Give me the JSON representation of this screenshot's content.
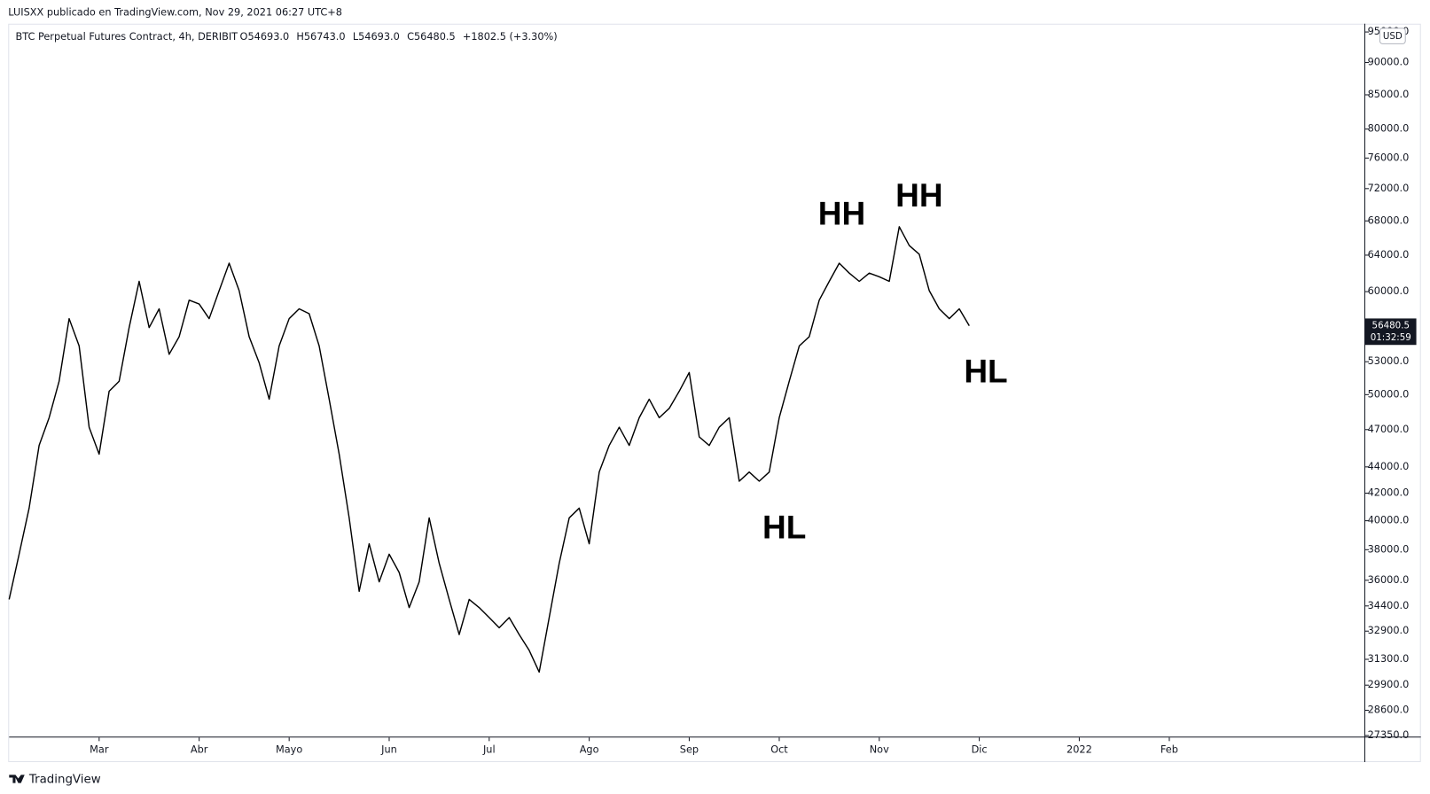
{
  "header": {
    "publisher": "LUISXX publicado en TradingView.com, Nov 29, 2021 06:27 UTC+8",
    "brand": "TradingView"
  },
  "chart_data": {
    "type": "line",
    "title": "BTC Perpetual Futures Contract, 4h, DERIBIT",
    "ohlc": [
      "O54693.0",
      "H56743.0",
      "L54693.0",
      "C56480.5",
      "+1802.5 (+3.30%)"
    ],
    "currency": "USD",
    "log_scale": true,
    "grid": false,
    "categories": [
      null,
      null,
      null,
      null,
      null,
      null,
      null,
      null,
      null,
      "Mar",
      null,
      null,
      null,
      null,
      null,
      null,
      null,
      null,
      null,
      "Abr",
      null,
      null,
      null,
      null,
      null,
      null,
      null,
      null,
      "Mayo",
      null,
      null,
      null,
      null,
      null,
      null,
      null,
      null,
      null,
      "Jun",
      null,
      null,
      null,
      null,
      null,
      null,
      null,
      null,
      null,
      "Jul",
      null,
      null,
      null,
      null,
      null,
      null,
      null,
      null,
      null,
      "Ago",
      null,
      null,
      null,
      null,
      null,
      null,
      null,
      null,
      null,
      "Sep",
      null,
      null,
      null,
      null,
      null,
      null,
      null,
      null,
      "Oct",
      null,
      null,
      null,
      null,
      null,
      null,
      null,
      null,
      null,
      "Nov",
      null,
      null,
      null,
      null,
      null,
      null,
      null,
      null,
      null,
      "Dic",
      null,
      null,
      null,
      null,
      null,
      null,
      null,
      null,
      null,
      "2022",
      null,
      null,
      null,
      null,
      null,
      null,
      null,
      null,
      "Feb",
      null,
      null,
      null,
      null,
      null,
      null,
      null,
      null,
      null,
      null,
      null,
      null,
      null,
      null,
      null,
      null,
      null,
      null,
      null
    ],
    "series": [
      {
        "name": "BTC",
        "color": "#000000",
        "values": [
          34800,
          37700,
          40900,
          45700,
          48000,
          51200,
          57200,
          54500,
          47200,
          45000,
          50300,
          51200,
          56300,
          61100,
          56300,
          58200,
          53700,
          55400,
          59100,
          58700,
          57200,
          60100,
          63100,
          60100,
          55400,
          52900,
          49600,
          54500,
          57200,
          58200,
          57700,
          54500,
          49600,
          45000,
          40200,
          35300,
          38400,
          35900,
          37700,
          36500,
          34300,
          35900,
          40200,
          37100,
          34800,
          32700,
          34800,
          34300,
          33700,
          33100,
          33700,
          32700,
          31800,
          30600,
          33700,
          37100,
          40200,
          40900,
          38400,
          43600,
          45700,
          47200,
          45700,
          48000,
          49600,
          48000,
          48800,
          50300,
          52000,
          46400,
          45700,
          47200,
          48000,
          42900,
          43600,
          42900,
          43600,
          48000,
          51200,
          54500,
          55400,
          59100,
          61100,
          63100,
          62000,
          61100,
          62000,
          61600,
          61100,
          67300,
          65100,
          64100,
          60100,
          58200,
          57200,
          58200,
          56480.5,
          null,
          null,
          null,
          null,
          null,
          null,
          null,
          null,
          null,
          null,
          null,
          null,
          null,
          null,
          null,
          null,
          null,
          null,
          null,
          null,
          null,
          null,
          null,
          null,
          null,
          null,
          null,
          null,
          null,
          null,
          null,
          null,
          null,
          null,
          null,
          null,
          null,
          null,
          null
        ]
      }
    ],
    "ylim": [
      27300,
      96400
    ],
    "yticks": [
      {
        "value": 95000,
        "label": "95000.0"
      },
      {
        "value": 90000,
        "label": "90000.0"
      },
      {
        "value": 85000,
        "label": "85000.0"
      },
      {
        "value": 80000,
        "label": "80000.0"
      },
      {
        "value": 76000,
        "label": "76000.0"
      },
      {
        "value": 72000,
        "label": "72000.0"
      },
      {
        "value": 68000,
        "label": "68000.0"
      },
      {
        "value": 64000,
        "label": "64000.0"
      },
      {
        "value": 60000,
        "label": "60000.0"
      },
      {
        "value": 53000,
        "label": "53000.0"
      },
      {
        "value": 50000,
        "label": "50000.0"
      },
      {
        "value": 47000,
        "label": "47000.0"
      },
      {
        "value": 44000,
        "label": "44000.0"
      },
      {
        "value": 42000,
        "label": "42000.0"
      },
      {
        "value": 40000,
        "label": "40000.0"
      },
      {
        "value": 38000,
        "label": "38000.0"
      },
      {
        "value": 36000,
        "label": "36000.0"
      },
      {
        "value": 34400,
        "label": "34400.0"
      },
      {
        "value": 32900,
        "label": "32900.0"
      },
      {
        "value": 31300,
        "label": "31300.0"
      },
      {
        "value": 29900,
        "label": "29900.0"
      },
      {
        "value": 28600,
        "label": "28600.0"
      },
      {
        "value": 27350,
        "label": "27350.0"
      }
    ],
    "last_price": {
      "price": 56480.5,
      "countdown": "01:32:59"
    },
    "annotations": [
      "HH",
      "HH",
      "HL",
      "HL"
    ]
  }
}
